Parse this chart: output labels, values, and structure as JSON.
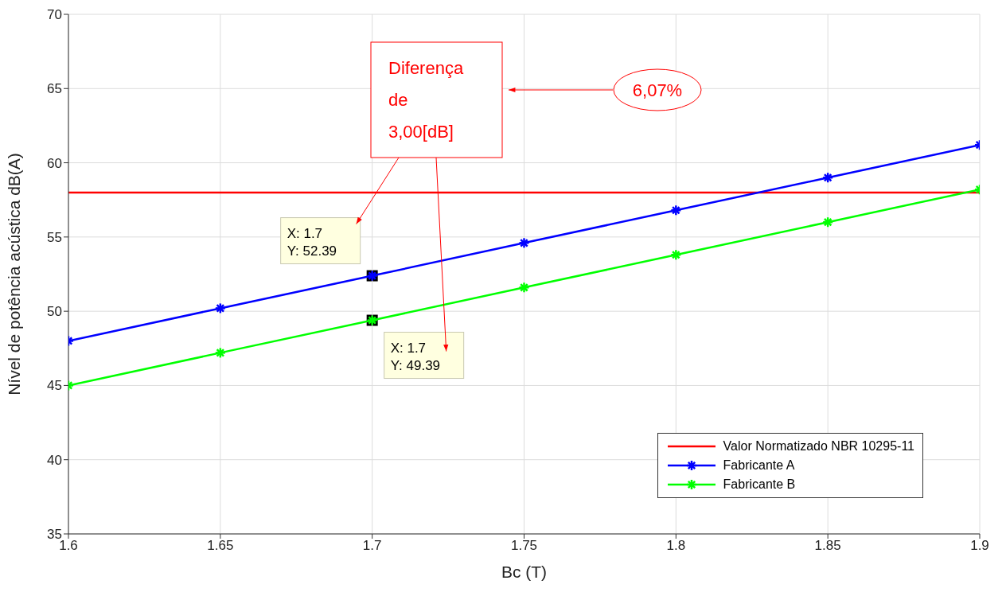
{
  "chart_data": {
    "type": "line",
    "x": [
      1.6,
      1.65,
      1.7,
      1.75,
      1.8,
      1.85,
      1.9
    ],
    "series": [
      {
        "name": "Valor Normatizado NBR 10295-11",
        "color": "#ff0000",
        "marker": "none",
        "values": [
          58,
          58,
          58,
          58,
          58,
          58,
          58
        ]
      },
      {
        "name": "Fabricante A",
        "color": "#0000ff",
        "marker": "cross",
        "values": [
          48.0,
          50.2,
          52.39,
          54.6,
          56.8,
          59.0,
          61.2
        ]
      },
      {
        "name": "Fabricante B",
        "color": "#00ff00",
        "marker": "cross",
        "values": [
          45.0,
          47.2,
          49.39,
          51.6,
          53.8,
          56.0,
          58.2
        ]
      }
    ],
    "xlim": [
      1.6,
      1.9
    ],
    "xticks": [
      1.6,
      1.65,
      1.7,
      1.75,
      1.8,
      1.85,
      1.9
    ],
    "ylim": [
      35,
      70
    ],
    "yticks": [
      35,
      40,
      45,
      50,
      55,
      60,
      65,
      70
    ],
    "xlabel": "Bc (T)",
    "ylabel": "Nível de potência acústica dB(A)",
    "grid": true,
    "legend": "bottom right",
    "annotations": [
      "Diferença\nde\n3,00[dB]",
      "6,07%",
      {
        "text": "X: 1.7\nY: 52.39",
        "x": 1.7,
        "y": 52.39
      },
      {
        "text": "X: 1.7\nY: 49.39",
        "x": 1.7,
        "y": 49.39
      }
    ]
  }
}
